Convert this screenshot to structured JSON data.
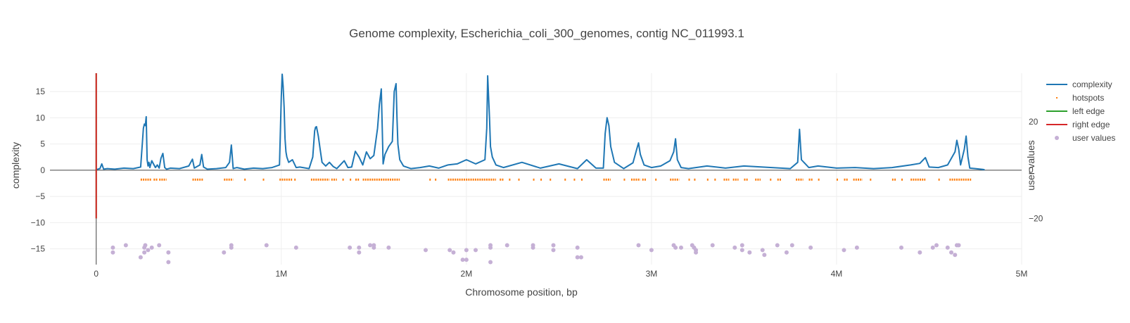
{
  "chart_data": {
    "type": "line",
    "title": "Genome complexity, Escherichia_coli_300_genomes, contig NC_011993.1",
    "xlabel": "Chromosome position, bp",
    "ylabel": "complexity",
    "y2label": "user values",
    "xlim": [
      -250000,
      5000000
    ],
    "ylim": [
      -18,
      18.5
    ],
    "y2lim": [
      -39,
      40
    ],
    "xticks": [
      0,
      1000000,
      2000000,
      3000000,
      4000000,
      5000000
    ],
    "xtick_labels": [
      "0",
      "1M",
      "2M",
      "3M",
      "4M",
      "5M"
    ],
    "yticks": [
      -15,
      -10,
      -5,
      0,
      5,
      10,
      15
    ],
    "ytick_labels": [
      "−15",
      "−10",
      "−5",
      "0",
      "5",
      "10",
      "15"
    ],
    "y2ticks": [
      -20,
      0,
      20
    ],
    "y2tick_labels": [
      "−20",
      "0",
      "20"
    ],
    "grid": true,
    "legend_position": "top-right",
    "colors": {
      "complexity": "#1f77b4",
      "hotspots": "#ff7f0e",
      "left_edge": "#2ca02c",
      "right_edge": "#d62728",
      "user_values": "#c5b0d5"
    },
    "series": [
      {
        "name": "complexity",
        "type": "line",
        "x": [
          0,
          20000,
          30000,
          40000,
          60000,
          100000,
          150000,
          200000,
          240000,
          250000,
          255000,
          260000,
          265000,
          270000,
          275000,
          280000,
          285000,
          290000,
          300000,
          320000,
          330000,
          340000,
          350000,
          360000,
          370000,
          380000,
          400000,
          450000,
          500000,
          520000,
          530000,
          540000,
          560000,
          570000,
          580000,
          600000,
          650000,
          700000,
          720000,
          730000,
          740000,
          760000,
          800000,
          850000,
          900000,
          950000,
          990000,
          1000000,
          1005000,
          1010000,
          1015000,
          1020000,
          1025000,
          1030000,
          1040000,
          1060000,
          1080000,
          1100000,
          1150000,
          1170000,
          1180000,
          1185000,
          1190000,
          1200000,
          1210000,
          1220000,
          1240000,
          1260000,
          1280000,
          1300000,
          1340000,
          1360000,
          1380000,
          1400000,
          1420000,
          1440000,
          1460000,
          1480000,
          1500000,
          1520000,
          1530000,
          1540000,
          1550000,
          1560000,
          1580000,
          1600000,
          1610000,
          1620000,
          1625000,
          1630000,
          1640000,
          1660000,
          1700000,
          1750000,
          1800000,
          1850000,
          1900000,
          1950000,
          2000000,
          2050000,
          2100000,
          2110000,
          2115000,
          2120000,
          2125000,
          2130000,
          2140000,
          2160000,
          2200000,
          2300000,
          2400000,
          2500000,
          2600000,
          2650000,
          2700000,
          2740000,
          2750000,
          2760000,
          2770000,
          2780000,
          2800000,
          2850000,
          2900000,
          2920000,
          2930000,
          2940000,
          2960000,
          3000000,
          3050000,
          3100000,
          3120000,
          3130000,
          3140000,
          3160000,
          3200000,
          3300000,
          3400000,
          3500000,
          3600000,
          3700000,
          3750000,
          3790000,
          3800000,
          3810000,
          3850000,
          3900000,
          4000000,
          4100000,
          4200000,
          4300000,
          4400000,
          4450000,
          4480000,
          4500000,
          4550000,
          4600000,
          4640000,
          4650000,
          4660000,
          4670000,
          4690000,
          4700000,
          4710000,
          4720000,
          4750000,
          4800000
        ],
        "y": [
          0.1,
          0.3,
          1.2,
          0.2,
          0.3,
          0.2,
          0.4,
          0.3,
          0.6,
          5.5,
          8.0,
          8.8,
          8.5,
          10.2,
          2.0,
          0.8,
          1.5,
          0.5,
          1.8,
          0.5,
          1.0,
          0.4,
          2.3,
          3.2,
          0.5,
          0.2,
          0.4,
          0.3,
          0.8,
          2.1,
          0.4,
          0.6,
          1.0,
          3.0,
          0.6,
          0.2,
          0.3,
          0.5,
          1.5,
          4.8,
          0.3,
          0.5,
          0.2,
          0.4,
          0.3,
          0.5,
          1.0,
          14.0,
          18.3,
          16.0,
          12.0,
          6.0,
          3.5,
          2.5,
          1.5,
          2.0,
          0.5,
          0.6,
          0.3,
          2.5,
          7.5,
          8.2,
          8.3,
          6.5,
          4.0,
          1.5,
          0.8,
          1.5,
          0.7,
          0.3,
          1.8,
          0.5,
          0.6,
          3.6,
          2.5,
          1.0,
          3.5,
          2.2,
          2.8,
          8.0,
          12.5,
          15.5,
          1.2,
          3.0,
          4.5,
          5.5,
          15.0,
          16.5,
          10.0,
          5.0,
          2.0,
          0.8,
          0.3,
          0.5,
          0.8,
          0.4,
          1.0,
          1.2,
          2.0,
          1.2,
          2.0,
          8.0,
          18.0,
          14.0,
          10.0,
          4.5,
          2.5,
          1.0,
          0.5,
          1.5,
          0.4,
          1.2,
          0.3,
          2.0,
          0.4,
          0.4,
          7.0,
          10.0,
          8.5,
          4.5,
          1.5,
          0.3,
          1.4,
          4.0,
          5.2,
          3.0,
          1.0,
          0.5,
          0.8,
          1.8,
          3.5,
          6.0,
          2.0,
          0.5,
          0.3,
          0.8,
          0.4,
          0.8,
          0.6,
          0.4,
          0.3,
          1.5,
          7.8,
          2.0,
          0.5,
          0.8,
          0.4,
          0.5,
          0.3,
          0.5,
          1.0,
          1.3,
          2.4,
          0.6,
          0.5,
          1.0,
          3.5,
          5.7,
          4.0,
          1.0,
          4.0,
          6.5,
          2.5,
          0.4,
          0.3,
          0.1
        ]
      },
      {
        "name": "hotspots",
        "type": "segments",
        "y": -1.8,
        "ranges": [
          [
            240000,
            300000
          ],
          [
            310000,
            330000
          ],
          [
            340000,
            380000
          ],
          [
            520000,
            580000
          ],
          [
            690000,
            740000
          ],
          [
            800000,
            810000
          ],
          [
            900000,
            910000
          ],
          [
            990000,
            1060000
          ],
          [
            1070000,
            1080000
          ],
          [
            1160000,
            1260000
          ],
          [
            1270000,
            1300000
          ],
          [
            1330000,
            1340000
          ],
          [
            1370000,
            1380000
          ],
          [
            1400000,
            1420000
          ],
          [
            1440000,
            1640000
          ],
          [
            1800000,
            1810000
          ],
          [
            1830000,
            1840000
          ],
          [
            1900000,
            2160000
          ],
          [
            2180000,
            2200000
          ],
          [
            2230000,
            2240000
          ],
          [
            2280000,
            2290000
          ],
          [
            2360000,
            2370000
          ],
          [
            2400000,
            2410000
          ],
          [
            2450000,
            2460000
          ],
          [
            2530000,
            2540000
          ],
          [
            2580000,
            2590000
          ],
          [
            2620000,
            2630000
          ],
          [
            2740000,
            2780000
          ],
          [
            2850000,
            2860000
          ],
          [
            2890000,
            2940000
          ],
          [
            2950000,
            2970000
          ],
          [
            3020000,
            3030000
          ],
          [
            3100000,
            3150000
          ],
          [
            3200000,
            3210000
          ],
          [
            3230000,
            3240000
          ],
          [
            3300000,
            3310000
          ],
          [
            3340000,
            3350000
          ],
          [
            3390000,
            3420000
          ],
          [
            3440000,
            3470000
          ],
          [
            3500000,
            3520000
          ],
          [
            3560000,
            3590000
          ],
          [
            3640000,
            3650000
          ],
          [
            3680000,
            3700000
          ],
          [
            3780000,
            3820000
          ],
          [
            3850000,
            3870000
          ],
          [
            3900000,
            3910000
          ],
          [
            4000000,
            4010000
          ],
          [
            4040000,
            4060000
          ],
          [
            4090000,
            4140000
          ],
          [
            4180000,
            4190000
          ],
          [
            4300000,
            4320000
          ],
          [
            4350000,
            4360000
          ],
          [
            4400000,
            4480000
          ],
          [
            4550000,
            4560000
          ],
          [
            4610000,
            4730000
          ]
        ]
      },
      {
        "name": "left edge",
        "type": "vline",
        "x": 0,
        "y": [
          -9.2,
          18.5
        ]
      },
      {
        "name": "right edge",
        "type": "vline",
        "x": 0,
        "y": [
          -9.2,
          18.5
        ]
      },
      {
        "name": "user values",
        "type": "scatter",
        "axis": "y2",
        "x": [
          90000,
          90000,
          160000,
          240000,
          260000,
          260000,
          265000,
          280000,
          300000,
          340000,
          390000,
          390000,
          690000,
          730000,
          730000,
          920000,
          1080000,
          1370000,
          1420000,
          1420000,
          1480000,
          1500000,
          1500000,
          1580000,
          1780000,
          1910000,
          1930000,
          1980000,
          2000000,
          2000000,
          2050000,
          2130000,
          2130000,
          2130000,
          2220000,
          2360000,
          2360000,
          2470000,
          2470000,
          2600000,
          2600000,
          2620000,
          2930000,
          3000000,
          3120000,
          3130000,
          3160000,
          3220000,
          3230000,
          3240000,
          3240000,
          3330000,
          3450000,
          3490000,
          3490000,
          3530000,
          3600000,
          3610000,
          3680000,
          3730000,
          3760000,
          3860000,
          4040000,
          4110000,
          4350000,
          4450000,
          4520000,
          4540000,
          4600000,
          4620000,
          4640000,
          4650000,
          4660000
        ],
        "y": [
          -32,
          -34,
          -31,
          -36,
          -32,
          -34,
          -31,
          -33,
          -32,
          -31,
          -34,
          -38,
          -34,
          -31,
          -32,
          -31,
          -32,
          -32,
          -32,
          -34,
          -31,
          -32,
          -31,
          -32,
          -33,
          -33,
          -34,
          -37,
          -33,
          -37,
          -33,
          -31,
          -32,
          -38,
          -31,
          -31,
          -32,
          -31,
          -33,
          -32,
          -36,
          -36,
          -31,
          -33,
          -31,
          -32,
          -32,
          -31,
          -32,
          -33,
          -34,
          -31,
          -32,
          -31,
          -33,
          -34,
          -33,
          -35,
          -31,
          -34,
          -31,
          -32,
          -33,
          -32,
          -32,
          -34,
          -32,
          -31,
          -32,
          -34,
          -35,
          -31,
          -31
        ]
      }
    ]
  }
}
